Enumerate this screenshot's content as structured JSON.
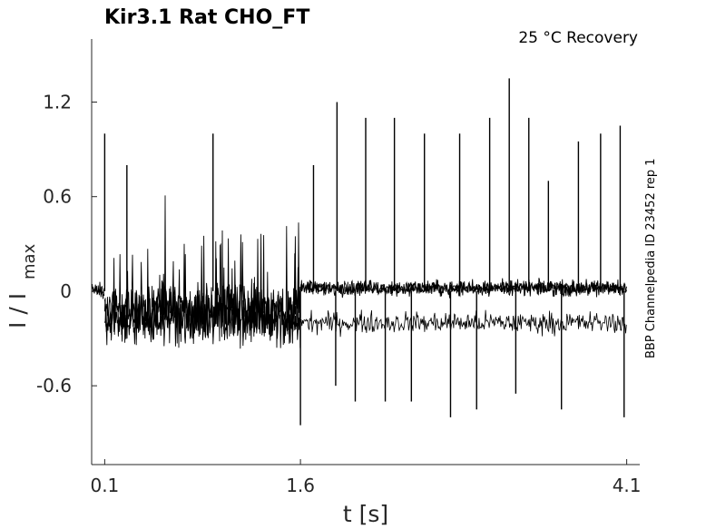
{
  "chart_data": {
    "type": "line",
    "title": "Kir3.1  Rat  CHO_FT",
    "condition": "25 °C  Recovery",
    "side_label": "BBP Channelpedia ID 23452 rep 1",
    "xlabel": "t [s]",
    "ylabel_main": "I / I",
    "ylabel_sub": "max",
    "xlim": [
      0,
      4.2
    ],
    "ylim": [
      -1.1,
      1.6
    ],
    "xticks": [
      {
        "value": 0.1,
        "label": "0.1"
      },
      {
        "value": 1.6,
        "label": "1.6"
      },
      {
        "value": 4.1,
        "label": "4.1"
      }
    ],
    "yticks": [
      {
        "value": -0.6,
        "label": "-0.6"
      },
      {
        "value": 0,
        "label": "0"
      },
      {
        "value": 0.6,
        "label": "0.6"
      },
      {
        "value": 1.2,
        "label": "1.2"
      }
    ],
    "grid": false,
    "line_color": "#000000",
    "series": [
      {
        "segments": [
          {
            "x": [
              0.0,
              0.1
            ],
            "mean": 0.0,
            "noise": 0.08
          },
          {
            "x": [
              0.1,
              1.6
            ],
            "mean": -0.15,
            "noise": 0.25
          },
          {
            "x": [
              1.6,
              4.1
            ],
            "mean": 0.02,
            "noise": 0.07,
            "lower_band": -0.2
          }
        ],
        "spikes_up": [
          {
            "x": 0.1,
            "y": 1.0
          },
          {
            "x": 0.27,
            "y": 0.8
          },
          {
            "x": 0.93,
            "y": 1.0
          },
          {
            "x": 1.7,
            "y": 0.8
          },
          {
            "x": 1.88,
            "y": 1.2
          },
          {
            "x": 2.1,
            "y": 1.1
          },
          {
            "x": 2.32,
            "y": 1.1
          },
          {
            "x": 2.55,
            "y": 1.0
          },
          {
            "x": 2.82,
            "y": 1.0
          },
          {
            "x": 3.05,
            "y": 1.1
          },
          {
            "x": 3.2,
            "y": 1.35
          },
          {
            "x": 3.35,
            "y": 1.1
          },
          {
            "x": 3.5,
            "y": 0.7
          },
          {
            "x": 3.73,
            "y": 0.95
          },
          {
            "x": 3.9,
            "y": 1.0
          },
          {
            "x": 4.05,
            "y": 1.05
          }
        ],
        "spikes_down": [
          {
            "x": 1.6,
            "y": -0.85
          },
          {
            "x": 1.87,
            "y": -0.6
          },
          {
            "x": 2.02,
            "y": -0.7
          },
          {
            "x": 2.25,
            "y": -0.7
          },
          {
            "x": 2.45,
            "y": -0.7
          },
          {
            "x": 2.75,
            "y": -0.8
          },
          {
            "x": 2.95,
            "y": -0.75
          },
          {
            "x": 3.25,
            "y": -0.65
          },
          {
            "x": 3.6,
            "y": -0.75
          },
          {
            "x": 4.08,
            "y": -0.8
          }
        ]
      }
    ]
  }
}
